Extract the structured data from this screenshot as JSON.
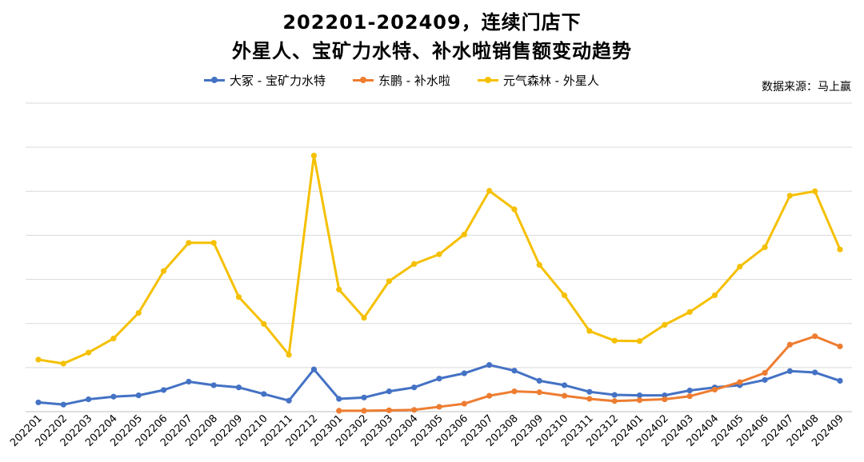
{
  "chart_data": {
    "type": "line",
    "title_line1": "202201-202409，连续门店下",
    "title_line2": "外星人、宝矿力水特、补水啦销售额变动趋势",
    "source": "数据来源：马上赢",
    "grid": true,
    "legend_position": "top",
    "x": [
      "202201",
      "202202",
      "202203",
      "202204",
      "202205",
      "202206",
      "202207",
      "202208",
      "202209",
      "202210",
      "202211",
      "202212",
      "202301",
      "202302",
      "202303",
      "202304",
      "202305",
      "202306",
      "202307",
      "202308",
      "202309",
      "202310",
      "202311",
      "202312",
      "202401",
      "202402",
      "202403",
      "202404",
      "202405",
      "202406",
      "202407",
      "202408",
      "202409"
    ],
    "ylim": [
      0,
      7
    ],
    "series": [
      {
        "name": "大冢 - 宝矿力水特",
        "color": "#4472C4",
        "values": [
          0.21,
          0.16,
          0.28,
          0.34,
          0.37,
          0.49,
          0.68,
          0.6,
          0.55,
          0.4,
          0.25,
          0.96,
          0.29,
          0.32,
          0.46,
          0.55,
          0.75,
          0.87,
          1.06,
          0.93,
          0.7,
          0.6,
          0.45,
          0.38,
          0.37,
          0.37,
          0.48,
          0.55,
          0.6,
          0.72,
          0.92,
          0.89,
          0.7
        ]
      },
      {
        "name": "东鹏 - 补水啦",
        "color": "#ED7D31",
        "values": [
          null,
          null,
          null,
          null,
          null,
          null,
          null,
          null,
          null,
          null,
          null,
          null,
          0.02,
          0.02,
          0.03,
          0.04,
          0.11,
          0.18,
          0.36,
          0.46,
          0.44,
          0.36,
          0.29,
          0.24,
          0.26,
          0.28,
          0.35,
          0.5,
          0.67,
          0.88,
          1.52,
          1.71,
          1.48
        ]
      },
      {
        "name": "元气森林 - 外星人",
        "color": "#F5C000",
        "values": [
          1.18,
          1.09,
          1.34,
          1.66,
          2.24,
          3.19,
          3.83,
          3.83,
          2.6,
          1.99,
          1.29,
          5.81,
          2.77,
          2.13,
          2.96,
          3.35,
          3.57,
          4.02,
          5.01,
          4.59,
          3.33,
          2.64,
          1.83,
          1.61,
          1.6,
          1.97,
          2.26,
          2.64,
          3.29,
          3.73,
          4.9,
          5.0,
          3.68
        ]
      }
    ]
  }
}
